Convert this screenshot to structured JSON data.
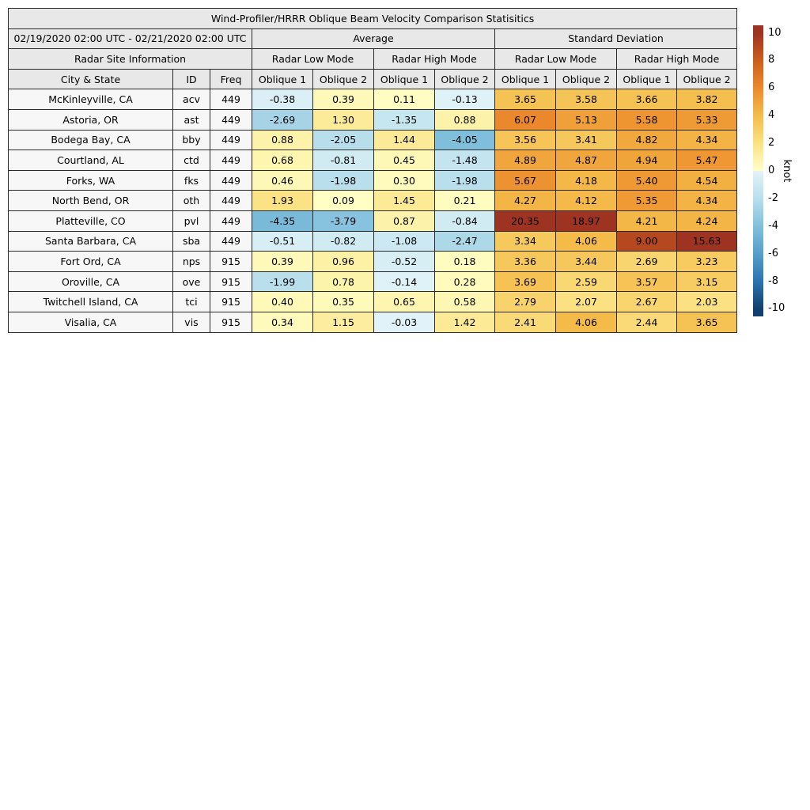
{
  "title": "Wind-Profiler/HRRR Oblique Beam Velocity Comparison Statisitics",
  "header": {
    "date_range": "02/19/2020 02:00 UTC - 02/21/2020 02:00 UTC",
    "group_average": "Average",
    "group_std": "Standard Deviation",
    "site_info": "Radar Site Information",
    "mode_low": "Radar Low Mode",
    "mode_high": "Radar High Mode",
    "col_city": "City & State",
    "col_id": "ID",
    "col_freq": "Freq",
    "col_oblique1": "Oblique 1",
    "col_oblique2": "Oblique 2"
  },
  "rows": [
    {
      "city": "McKinleyville, CA",
      "id": "acv",
      "freq": "449",
      "values": [
        -0.38,
        0.39,
        0.11,
        -0.13,
        3.65,
        3.58,
        3.66,
        3.82
      ]
    },
    {
      "city": "Astoria, OR",
      "id": "ast",
      "freq": "449",
      "values": [
        -2.69,
        1.3,
        -1.35,
        0.88,
        6.07,
        5.13,
        5.58,
        5.33
      ]
    },
    {
      "city": "Bodega Bay, CA",
      "id": "bby",
      "freq": "449",
      "values": [
        0.88,
        -2.05,
        1.44,
        -4.05,
        3.56,
        3.41,
        4.82,
        4.34
      ]
    },
    {
      "city": "Courtland, AL",
      "id": "ctd",
      "freq": "449",
      "values": [
        0.68,
        -0.81,
        0.45,
        -1.48,
        4.89,
        4.87,
        4.94,
        5.47
      ]
    },
    {
      "city": "Forks, WA",
      "id": "fks",
      "freq": "449",
      "values": [
        0.46,
        -1.98,
        0.3,
        -1.98,
        5.67,
        4.18,
        5.4,
        4.54
      ]
    },
    {
      "city": "North Bend, OR",
      "id": "oth",
      "freq": "449",
      "values": [
        1.93,
        0.09,
        1.45,
        0.21,
        4.27,
        4.12,
        5.35,
        4.34
      ]
    },
    {
      "city": "Platteville, CO",
      "id": "pvl",
      "freq": "449",
      "values": [
        -4.35,
        -3.79,
        0.87,
        -0.84,
        20.35,
        18.97,
        4.21,
        4.24
      ]
    },
    {
      "city": "Santa Barbara, CA",
      "id": "sba",
      "freq": "449",
      "values": [
        -0.51,
        -0.82,
        -1.08,
        -2.47,
        3.34,
        4.06,
        9.0,
        15.63
      ]
    },
    {
      "city": "Fort Ord, CA",
      "id": "nps",
      "freq": "915",
      "values": [
        0.39,
        0.96,
        -0.52,
        0.18,
        3.36,
        3.44,
        2.69,
        3.23
      ]
    },
    {
      "city": "Oroville, CA",
      "id": "ove",
      "freq": "915",
      "values": [
        -1.99,
        0.78,
        -0.14,
        0.28,
        3.69,
        2.59,
        3.57,
        3.15
      ]
    },
    {
      "city": "Twitchell Island, CA",
      "id": "tci",
      "freq": "915",
      "values": [
        0.4,
        0.35,
        0.65,
        0.58,
        2.79,
        2.07,
        2.67,
        2.03
      ]
    },
    {
      "city": "Visalia, CA",
      "id": "vis",
      "freq": "915",
      "values": [
        0.34,
        1.15,
        -0.03,
        1.42,
        2.41,
        4.06,
        2.44,
        3.65
      ]
    }
  ],
  "colorbar": {
    "unit": "knot",
    "ticks": [
      10,
      8,
      6,
      4,
      2,
      0,
      -2,
      -4,
      -6,
      -8,
      -10
    ],
    "value_range": [
      -10.55,
      10.55
    ],
    "stops_negative": [
      [
        -10,
        "#11406e"
      ],
      [
        -8,
        "#2b74b2"
      ],
      [
        -6,
        "#55a0ca"
      ],
      [
        -4,
        "#81c0dc"
      ],
      [
        -2,
        "#b9dfec"
      ],
      [
        0,
        "#e2f3f8"
      ]
    ],
    "stops_positive": [
      [
        0,
        "#ffffc6"
      ],
      [
        2,
        "#fbe283"
      ],
      [
        4,
        "#f4bc4a"
      ],
      [
        6,
        "#ec8a2b"
      ],
      [
        8,
        "#cd5d1d"
      ],
      [
        10,
        "#9d3320"
      ]
    ]
  },
  "style": {
    "header_bg": "#e8e8e8",
    "label_bg": "#f7f7f7",
    "border": "#2a2a2a"
  }
}
